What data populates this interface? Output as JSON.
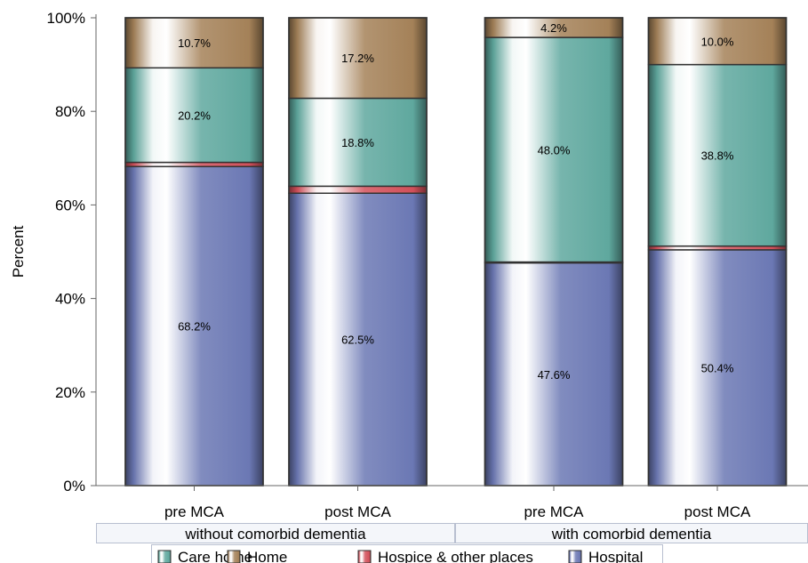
{
  "chart_data": {
    "type": "bar",
    "stacked": true,
    "ylabel": "Percent",
    "ylim": [
      0,
      100
    ],
    "yticks": [
      "0%",
      "20%",
      "40%",
      "60%",
      "80%",
      "100%"
    ],
    "groups": [
      "without comorbid dementia",
      "with comorbid dementia"
    ],
    "categories": [
      "pre MCA",
      "post MCA",
      "pre MCA",
      "post MCA"
    ],
    "category_group": [
      0,
      0,
      1,
      1
    ],
    "series": [
      {
        "name": "Hospital",
        "values": [
          68.2,
          62.5,
          47.6,
          50.4
        ],
        "labels": [
          "68.2%",
          "62.5%",
          "47.6%",
          "50.4%"
        ]
      },
      {
        "name": "Hospice & other places",
        "values": [
          0.9,
          1.5,
          0.2,
          0.8
        ],
        "labels": [
          "",
          "",
          "",
          ""
        ]
      },
      {
        "name": "Care home",
        "values": [
          20.2,
          18.8,
          48.0,
          38.8
        ],
        "labels": [
          "20.2%",
          "18.8%",
          "48.0%",
          "38.8%"
        ]
      },
      {
        "name": "Home",
        "values": [
          10.7,
          17.2,
          4.2,
          10.0
        ],
        "labels": [
          "10.7%",
          "17.2%",
          "4.2%",
          "10.0%"
        ]
      }
    ],
    "legend": {
      "position": "bottom",
      "order": [
        "Care home",
        "Home",
        "Hospice & other places",
        "Hospital"
      ]
    },
    "colors": {
      "Hospital": "#6b78b4",
      "Hospice & other places": "#d2505a",
      "Care home": "#5fa89e",
      "Home": "#a48158"
    },
    "grid": false
  }
}
